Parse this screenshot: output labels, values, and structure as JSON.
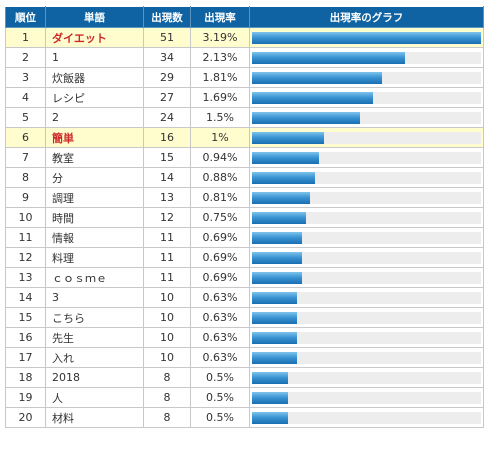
{
  "headers": {
    "rank": "順位",
    "word": "単語",
    "count": "出現数",
    "rate": "出現率",
    "graph": "出現率のグラフ"
  },
  "colors": {
    "header_bg": "#0f63a3",
    "highlight_row_bg": "#fffccd",
    "highlight_text": "#cc2a2a",
    "bar": "#1a6eb1",
    "bar_track": "#ededed"
  },
  "chart_data": {
    "type": "table",
    "x_max": 3.19,
    "rows": [
      {
        "rank": "1",
        "word": "ダイエット",
        "count": "51",
        "rate": "3.19%",
        "value": 3.19,
        "highlight": true
      },
      {
        "rank": "2",
        "word": "1",
        "count": "34",
        "rate": "2.13%",
        "value": 2.13,
        "highlight": false
      },
      {
        "rank": "3",
        "word": "炊飯器",
        "count": "29",
        "rate": "1.81%",
        "value": 1.81,
        "highlight": false
      },
      {
        "rank": "4",
        "word": "レシピ",
        "count": "27",
        "rate": "1.69%",
        "value": 1.69,
        "highlight": false
      },
      {
        "rank": "5",
        "word": "2",
        "count": "24",
        "rate": "1.5%",
        "value": 1.5,
        "highlight": false
      },
      {
        "rank": "6",
        "word": "簡単",
        "count": "16",
        "rate": "1%",
        "value": 1.0,
        "highlight": true
      },
      {
        "rank": "7",
        "word": "教室",
        "count": "15",
        "rate": "0.94%",
        "value": 0.94,
        "highlight": false
      },
      {
        "rank": "8",
        "word": "分",
        "count": "14",
        "rate": "0.88%",
        "value": 0.88,
        "highlight": false
      },
      {
        "rank": "9",
        "word": "調理",
        "count": "13",
        "rate": "0.81%",
        "value": 0.81,
        "highlight": false
      },
      {
        "rank": "10",
        "word": "時間",
        "count": "12",
        "rate": "0.75%",
        "value": 0.75,
        "highlight": false
      },
      {
        "rank": "11",
        "word": "情報",
        "count": "11",
        "rate": "0.69%",
        "value": 0.69,
        "highlight": false
      },
      {
        "rank": "12",
        "word": "料理",
        "count": "11",
        "rate": "0.69%",
        "value": 0.69,
        "highlight": false
      },
      {
        "rank": "13",
        "word": "ｃｏｓｍｅ",
        "count": "11",
        "rate": "0.69%",
        "value": 0.69,
        "highlight": false
      },
      {
        "rank": "14",
        "word": "3",
        "count": "10",
        "rate": "0.63%",
        "value": 0.63,
        "highlight": false
      },
      {
        "rank": "15",
        "word": "こちら",
        "count": "10",
        "rate": "0.63%",
        "value": 0.63,
        "highlight": false
      },
      {
        "rank": "16",
        "word": "先生",
        "count": "10",
        "rate": "0.63%",
        "value": 0.63,
        "highlight": false
      },
      {
        "rank": "17",
        "word": "入れ",
        "count": "10",
        "rate": "0.63%",
        "value": 0.63,
        "highlight": false
      },
      {
        "rank": "18",
        "word": "2018",
        "count": "8",
        "rate": "0.5%",
        "value": 0.5,
        "highlight": false
      },
      {
        "rank": "19",
        "word": "人",
        "count": "8",
        "rate": "0.5%",
        "value": 0.5,
        "highlight": false
      },
      {
        "rank": "20",
        "word": "材料",
        "count": "8",
        "rate": "0.5%",
        "value": 0.5,
        "highlight": false
      }
    ]
  }
}
